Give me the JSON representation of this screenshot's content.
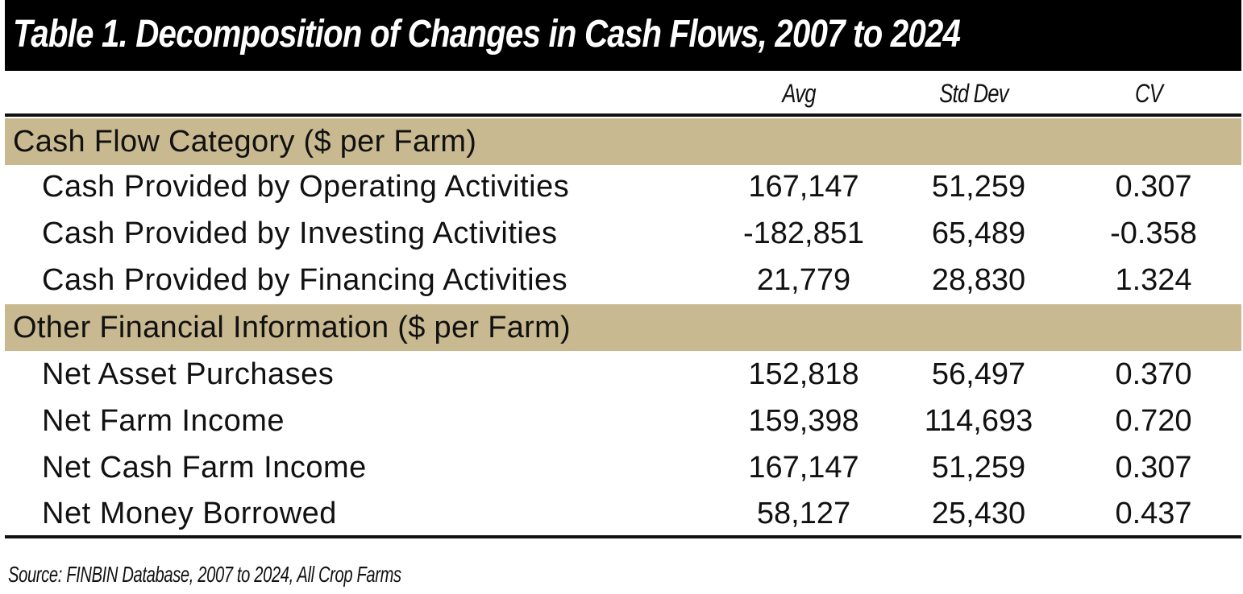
{
  "title": "Table 1.  Decomposition of Changes in Cash Flows, 2007 to 2024",
  "columns": [
    "Avg",
    "Std Dev",
    "CV"
  ],
  "sections": [
    {
      "label": "Cash Flow Category ($ per Farm)",
      "rows": [
        {
          "label": "Cash Provided by Operating Activities",
          "avg": "167,147",
          "std": "51,259",
          "cv": "0.307"
        },
        {
          "label": "Cash Provided by Investing Activities",
          "avg": "-182,851",
          "std": "65,489",
          "cv": "-0.358"
        },
        {
          "label": "Cash Provided by Financing Activities",
          "avg": "21,779",
          "std": "28,830",
          "cv": "1.324"
        }
      ]
    },
    {
      "label": "Other Financial Information ($ per Farm)",
      "rows": [
        {
          "label": "Net Asset Purchases",
          "avg": "152,818",
          "std": "56,497",
          "cv": "0.370"
        },
        {
          "label": "Net Farm Income",
          "avg": "159,398",
          "std": "114,693",
          "cv": "0.720"
        },
        {
          "label": "Net Cash Farm Income",
          "avg": "167,147",
          "std": "51,259",
          "cv": "0.307"
        },
        {
          "label": "Net Money Borrowed",
          "avg": "58,127",
          "std": "25,430",
          "cv": "0.437"
        }
      ]
    }
  ],
  "source": "Source: FINBIN Database, 2007 to 2024, All Crop Farms",
  "colors": {
    "title_bg": "#000000",
    "title_fg": "#ffffff",
    "section_bg": "#c9b990",
    "text": "#111111"
  }
}
